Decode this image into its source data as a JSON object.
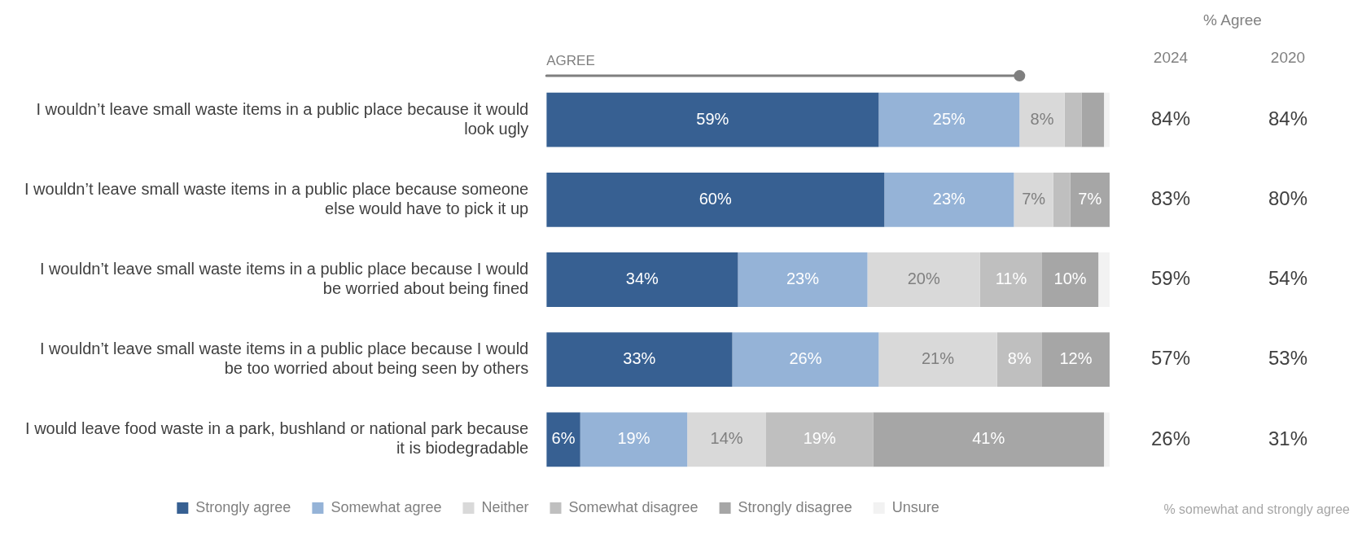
{
  "chart_data": {
    "type": "bar",
    "orientation": "horizontal",
    "stacked": true,
    "grid": false,
    "legend": "bottom",
    "data_labels": false,
    "xlim": [
      0,
      100
    ],
    "tick_labels": "y",
    "categories": [
      "I wouldn’t leave small waste items in a public place because it would look ugly",
      "I wouldn’t leave small waste items in a public place because someone else would have to pick it up",
      "I wouldn’t leave small waste items in a public place because I would be worried about being fined",
      "I wouldn’t leave small waste items in a public place because I would be too worried about being seen by others",
      "I would leave food waste in a park, bushland or national park because it is biodegradable"
    ],
    "series": [
      {
        "name": "Strongly agree",
        "color": "#376092",
        "values": [
          59,
          60,
          34,
          33,
          6
        ],
        "value_labels": [
          "59%",
          "60%",
          "34%",
          "33%",
          "6%"
        ]
      },
      {
        "name": "Somewhat agree",
        "color": "#95b3d7",
        "values": [
          25,
          23,
          23,
          26,
          19
        ],
        "value_labels": [
          "25%",
          "23%",
          "23%",
          "26%",
          "19%"
        ]
      },
      {
        "name": "Neither",
        "color": "#d9d9d9",
        "values": [
          8,
          7,
          20,
          21,
          14
        ],
        "value_labels": [
          "8%",
          "7%",
          "20%",
          "21%",
          "14%"
        ]
      },
      {
        "name": "Somewhat disagree",
        "color": "#bfbfbf",
        "values": [
          3,
          3,
          11,
          8,
          19
        ],
        "value_labels": [
          null,
          null,
          "11%",
          "8%",
          "19%"
        ]
      },
      {
        "name": "Strongly disagree",
        "color": "#a6a6a6",
        "values": [
          4,
          7,
          10,
          12,
          41
        ],
        "value_labels": [
          null,
          "7%",
          "10%",
          "12%",
          "41%"
        ]
      },
      {
        "name": "Unsure",
        "color": "#f2f2f2",
        "values": [
          1,
          0,
          2,
          0,
          1
        ],
        "value_labels": [
          null,
          null,
          null,
          null,
          null
        ]
      }
    ],
    "annotations": [
      "AGREE",
      "% Agree",
      "2024",
      "2020",
      "84%",
      "84%",
      "83%",
      "80%",
      "59%",
      "54%",
      "57%",
      "53%",
      "26%",
      "31%",
      "% somewhat and strongly agree"
    ]
  }
}
